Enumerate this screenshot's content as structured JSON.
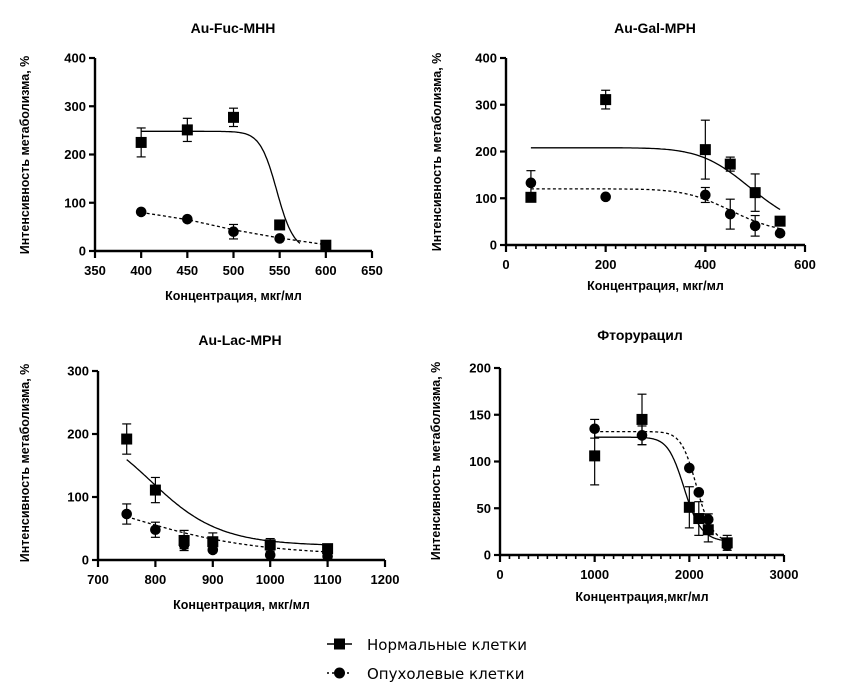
{
  "chart_data": [
    {
      "id": "au-fuc",
      "type": "scatter",
      "title": "Au-Fuc-MHH",
      "xlabel": "Концентрация, мкг/мл",
      "ylabel": "Интенсивность метаболизма, %",
      "xlim": [
        350,
        650
      ],
      "ylim": [
        0,
        400
      ],
      "xticks": [
        350,
        400,
        450,
        500,
        550,
        600,
        650
      ],
      "yticks": [
        0,
        100,
        200,
        300,
        400
      ],
      "xminor": 0,
      "grid": false,
      "series": [
        {
          "name": "Нормальные клетки",
          "marker": "square",
          "line": "solid",
          "x": [
            400,
            450,
            500,
            550,
            600
          ],
          "y": [
            225,
            251,
            277,
            54,
            12
          ],
          "err": [
            30,
            24,
            19,
            0,
            0
          ],
          "fit": {
            "top": 248,
            "bottom": 0,
            "ec50": 547,
            "hill": 60,
            "xfrom": 400,
            "xto": 572
          }
        },
        {
          "name": "Опухолевые клетки",
          "marker": "circle",
          "line": "dashed",
          "x": [
            400,
            450,
            500,
            550
          ],
          "y": [
            81,
            66,
            40,
            26
          ],
          "err": [
            0,
            0,
            15,
            0
          ],
          "fit": {
            "linear": [
              [
                400,
                80
              ],
              [
                450,
                65
              ],
              [
                500,
                44
              ],
              [
                550,
                27
              ],
              [
                600,
                13
              ]
            ]
          }
        }
      ]
    },
    {
      "id": "au-gal",
      "type": "scatter",
      "title": "Au-Gal-MPH",
      "xlabel": "Концентрация, мкг/мл",
      "ylabel": "Интенсивность метаболизма, %",
      "xlim": [
        0,
        600
      ],
      "ylim": [
        0,
        400
      ],
      "xticks": [
        0,
        200,
        400,
        600
      ],
      "yticks": [
        0,
        100,
        200,
        300,
        400
      ],
      "xminor": 20,
      "grid": false,
      "series": [
        {
          "name": "Нормальные клетки",
          "marker": "square",
          "line": "solid",
          "x": [
            50,
            200,
            400,
            450,
            500,
            550
          ],
          "y": [
            102,
            311,
            204,
            173,
            112,
            51
          ],
          "err": [
            0,
            20,
            63,
            15,
            40,
            0
          ],
          "fit": {
            "top": 208,
            "bottom": 20,
            "ec50": 500,
            "hill": 9,
            "xfrom": 50,
            "xto": 550
          }
        },
        {
          "name": "Опухолевые клетки",
          "marker": "circle",
          "line": "dashed",
          "x": [
            50,
            200,
            400,
            450,
            500,
            550
          ],
          "y": [
            133,
            103,
            107,
            66,
            41,
            25
          ],
          "err": [
            26,
            0,
            16,
            32,
            22,
            0
          ],
          "fit": {
            "top": 120,
            "bottom": 18,
            "ec50": 460,
            "hill": 9,
            "xfrom": 50,
            "xto": 550
          }
        }
      ]
    },
    {
      "id": "au-lac",
      "type": "scatter",
      "title": "Au-Lac-MPH",
      "xlabel": "Концентрация, мкг/мл",
      "ylabel": "Интенсивность метаболизма, %",
      "xlim": [
        700,
        1200
      ],
      "ylim": [
        0,
        300
      ],
      "xticks": [
        700,
        800,
        900,
        1000,
        1100,
        1200
      ],
      "yticks": [
        0,
        100,
        200,
        300
      ],
      "xminor": 0,
      "grid": false,
      "series": [
        {
          "name": "Нормальные клетки",
          "marker": "square",
          "line": "solid",
          "x": [
            750,
            800,
            850,
            900,
            1000,
            1100
          ],
          "y": [
            192,
            111,
            31,
            29,
            24,
            18
          ],
          "err": [
            24,
            20,
            16,
            14,
            10,
            6
          ],
          "fit": {
            "top": 215,
            "bottom": 22,
            "ec50": 800,
            "hill": 14,
            "xfrom": 750,
            "xto": 1100
          }
        },
        {
          "name": "Опухолевые клетки",
          "marker": "circle",
          "line": "dashed",
          "x": [
            750,
            800,
            850,
            900,
            1000,
            1100
          ],
          "y": [
            73,
            48,
            24,
            16,
            8,
            6
          ],
          "err": [
            16,
            12,
            6,
            0,
            0,
            0
          ],
          "fit": {
            "top": 110,
            "bottom": 6,
            "ec50": 790,
            "hill": 8,
            "xfrom": 750,
            "xto": 1100
          }
        }
      ]
    },
    {
      "id": "fluorouracil",
      "type": "scatter",
      "title": "Фторурацил",
      "xlabel": "Концентрация,мкг/мл",
      "ylabel": "Интенсивность метаболизма, %",
      "xlim": [
        0,
        3000
      ],
      "ylim": [
        0,
        200
      ],
      "xticks": [
        0,
        1000,
        2000,
        3000
      ],
      "yticks": [
        0,
        50,
        100,
        150,
        200
      ],
      "xminor": 100,
      "grid": false,
      "series": [
        {
          "name": "Нормальные клетки",
          "marker": "square",
          "line": "solid",
          "x": [
            1000,
            1500,
            2000,
            2100,
            2200,
            2400
          ],
          "y": [
            106,
            145,
            51,
            39,
            27,
            13
          ],
          "err": [
            31,
            27,
            22,
            18,
            13,
            8
          ],
          "fit": {
            "top": 126,
            "bottom": 14,
            "ec50": 1950,
            "hill": 22,
            "xfrom": 1000,
            "xto": 2400
          }
        },
        {
          "name": "Опухолевые клетки",
          "marker": "circle",
          "line": "dashed",
          "x": [
            1000,
            1500,
            2000,
            2100,
            2200,
            2400
          ],
          "y": [
            135,
            128,
            93,
            67,
            38,
            10
          ],
          "err": [
            10,
            10,
            0,
            0,
            6,
            0
          ],
          "fit": {
            "top": 132,
            "bottom": 12,
            "ec50": 2080,
            "hill": 25,
            "xfrom": 1000,
            "xto": 2400
          }
        }
      ]
    }
  ],
  "legend": {
    "placement": "bottom-center",
    "items": [
      {
        "label": "Нормальные клетки",
        "marker": "square",
        "line": "solid"
      },
      {
        "label": "Опухолевые клетки",
        "marker": "circle",
        "line": "dashed"
      }
    ]
  }
}
